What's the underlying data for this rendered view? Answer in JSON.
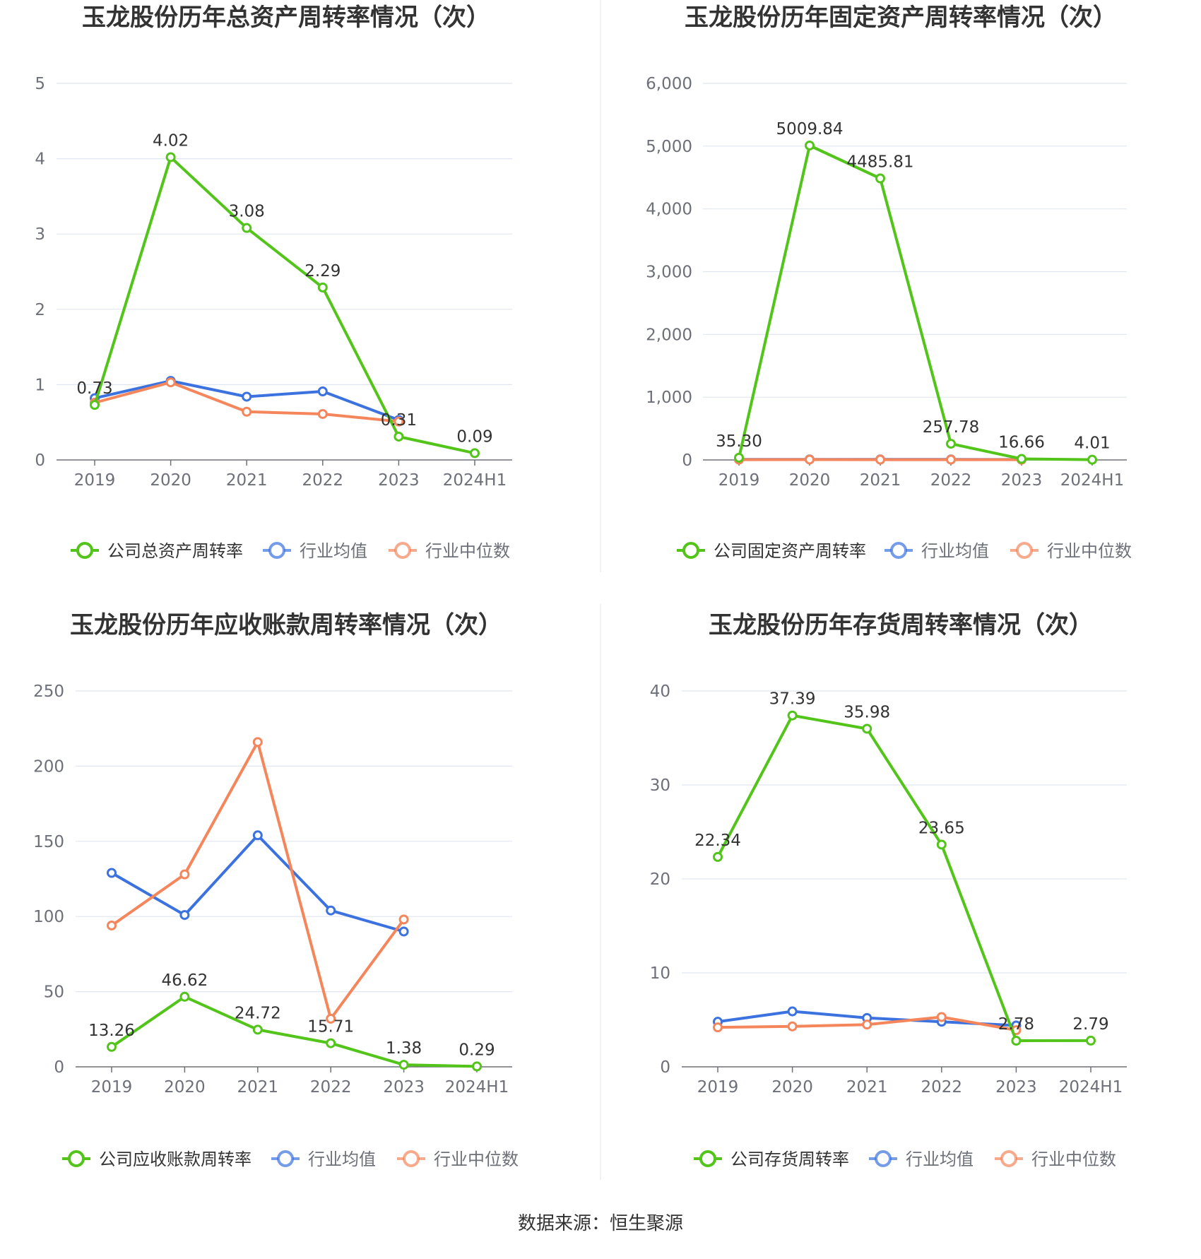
{
  "source": "数据来源：恒生聚源",
  "colors": {
    "company": "#52c41a",
    "avg": "#3b72e0",
    "median": "#f5865c"
  },
  "chart_data": [
    {
      "type": "line",
      "title": "玉龙股份历年总资产周转率情况（次）",
      "categories": [
        "2019",
        "2020",
        "2021",
        "2022",
        "2023",
        "2024H1"
      ],
      "y_ticks": [
        "0",
        "1",
        "2",
        "3",
        "4",
        "5"
      ],
      "ylim": [
        0,
        5
      ],
      "grid": true,
      "legend_position": "bottom",
      "series": [
        {
          "name": "公司总资产周转率",
          "color": "#52c41a",
          "values": [
            0.73,
            4.02,
            3.08,
            2.29,
            0.31,
            0.09
          ],
          "labels": [
            "0.73",
            "4.02",
            "3.08",
            "2.29",
            "0.31",
            "0.09"
          ]
        },
        {
          "name": "行业均值",
          "color": "#3b72e0",
          "values": [
            0.82,
            1.05,
            0.84,
            0.91,
            0.53,
            null
          ]
        },
        {
          "name": "行业中位数",
          "color": "#f5865c",
          "values": [
            0.76,
            1.03,
            0.64,
            0.61,
            0.51,
            null
          ]
        }
      ]
    },
    {
      "type": "line",
      "title": "玉龙股份历年固定资产周转率情况（次）",
      "categories": [
        "2019",
        "2020",
        "2021",
        "2022",
        "2023",
        "2024H1"
      ],
      "y_ticks": [
        "0",
        "1,000",
        "2,000",
        "3,000",
        "4,000",
        "5,000",
        "6,000"
      ],
      "ylim": [
        0,
        6000
      ],
      "grid": true,
      "legend_position": "bottom",
      "series": [
        {
          "name": "公司固定资产周转率",
          "color": "#52c41a",
          "values": [
            35.3,
            5009.84,
            4485.81,
            257.78,
            16.66,
            4.01
          ],
          "labels": [
            "35.30",
            "5009.84",
            "4485.81",
            "257.78",
            "16.66",
            "4.01"
          ]
        },
        {
          "name": "行业均值",
          "color": "#3b72e0",
          "values": [
            8,
            9,
            8,
            8,
            7,
            null
          ]
        },
        {
          "name": "行业中位数",
          "color": "#f5865c",
          "values": [
            5,
            6,
            5,
            5,
            4,
            null
          ]
        }
      ]
    },
    {
      "type": "line",
      "title": "玉龙股份历年应收账款周转率情况（次）",
      "categories": [
        "2019",
        "2020",
        "2021",
        "2022",
        "2023",
        "2024H1"
      ],
      "y_ticks": [
        "0",
        "50",
        "100",
        "150",
        "200",
        "250"
      ],
      "ylim": [
        0,
        250
      ],
      "grid": true,
      "legend_position": "bottom",
      "series": [
        {
          "name": "公司应收账款周转率",
          "color": "#52c41a",
          "values": [
            13.26,
            46.62,
            24.72,
            15.71,
            1.38,
            0.29
          ],
          "labels": [
            "13.26",
            "46.62",
            "24.72",
            "15.71",
            "1.38",
            "0.29"
          ]
        },
        {
          "name": "行业均值",
          "color": "#3b72e0",
          "values": [
            129,
            101,
            154,
            104,
            90,
            null
          ]
        },
        {
          "name": "行业中位数",
          "color": "#f5865c",
          "values": [
            94,
            128,
            216,
            32,
            98,
            null
          ]
        }
      ]
    },
    {
      "type": "line",
      "title": "玉龙股份历年存货周转率情况（次）",
      "categories": [
        "2019",
        "2020",
        "2021",
        "2022",
        "2023",
        "2024H1"
      ],
      "y_ticks": [
        "0",
        "10",
        "20",
        "30",
        "40"
      ],
      "ylim": [
        0,
        40
      ],
      "grid": true,
      "legend_position": "bottom",
      "series": [
        {
          "name": "公司存货周转率",
          "color": "#52c41a",
          "values": [
            22.34,
            37.39,
            35.98,
            23.65,
            2.78,
            2.79
          ],
          "labels": [
            "22.34",
            "37.39",
            "35.98",
            "23.65",
            "2.78",
            "2.79"
          ]
        },
        {
          "name": "行业均值",
          "color": "#3b72e0",
          "values": [
            4.8,
            5.9,
            5.2,
            4.8,
            4.4,
            null
          ]
        },
        {
          "name": "行业中位数",
          "color": "#f5865c",
          "values": [
            4.2,
            4.3,
            4.5,
            5.3,
            3.9,
            null
          ]
        }
      ]
    }
  ]
}
